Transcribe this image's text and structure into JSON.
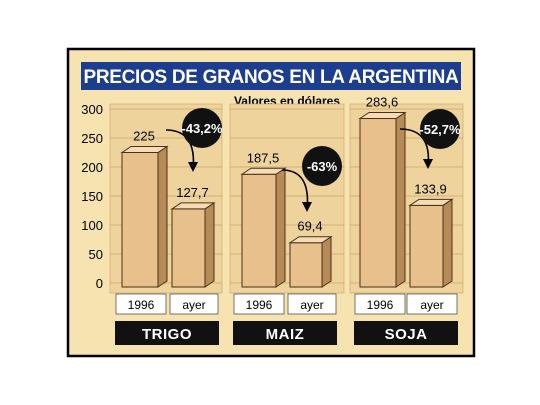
{
  "colors": {
    "panel": "#f6e3b0",
    "outer_border": "#000000",
    "title_bg": "#1d3e8f",
    "bar_front": "#e8c08c",
    "bar_side": "#b78b58",
    "bar_top": "#f5dcb6",
    "badge": "#111111",
    "crop_bar": "#111111",
    "label_box": "#ffffff"
  },
  "chart_data": {
    "type": "bar",
    "title": "PRECIOS DE GRANOS EN LA ARGENTINA",
    "subtitle": "Valores en dólares",
    "y_ticks": [
      "300",
      "250",
      "200",
      "150",
      "100",
      "50",
      "0"
    ],
    "ylim": [
      0,
      300
    ],
    "grid": true,
    "groups": [
      {
        "name": "TRIGO",
        "change": "-43,2%",
        "bars": [
          {
            "category": "1996",
            "value": 225,
            "label": "225"
          },
          {
            "category": "ayer",
            "value": 127.7,
            "label": "127,7"
          }
        ]
      },
      {
        "name": "MAIZ",
        "change": "-63%",
        "bars": [
          {
            "category": "1996",
            "value": 187.5,
            "label": "187,5"
          },
          {
            "category": "ayer",
            "value": 69.4,
            "label": "69,4"
          }
        ]
      },
      {
        "name": "SOJA",
        "change": "-52,7%",
        "bars": [
          {
            "category": "1996",
            "value": 283.6,
            "label": "283,6"
          },
          {
            "category": "ayer",
            "value": 133.9,
            "label": "133,9"
          }
        ]
      }
    ]
  }
}
